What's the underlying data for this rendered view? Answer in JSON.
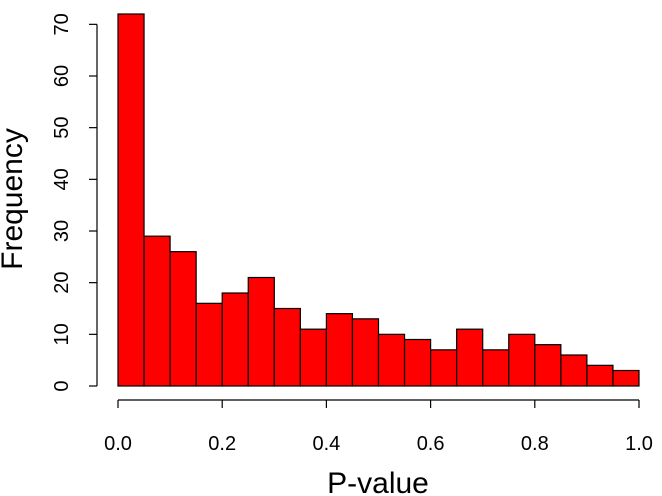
{
  "chart_data": {
    "type": "bar",
    "title": "",
    "xlabel": "P-value",
    "ylabel": "Frequency",
    "bins": [
      [
        0.0,
        0.05
      ],
      [
        0.05,
        0.1
      ],
      [
        0.1,
        0.15
      ],
      [
        0.15,
        0.2
      ],
      [
        0.2,
        0.25
      ],
      [
        0.25,
        0.3
      ],
      [
        0.3,
        0.35
      ],
      [
        0.35,
        0.4
      ],
      [
        0.4,
        0.45
      ],
      [
        0.45,
        0.5
      ],
      [
        0.5,
        0.55
      ],
      [
        0.55,
        0.6
      ],
      [
        0.6,
        0.65
      ],
      [
        0.65,
        0.7
      ],
      [
        0.7,
        0.75
      ],
      [
        0.75,
        0.8
      ],
      [
        0.8,
        0.85
      ],
      [
        0.85,
        0.9
      ],
      [
        0.9,
        0.95
      ],
      [
        0.95,
        1.0
      ]
    ],
    "values": [
      72,
      29,
      26,
      16,
      18,
      21,
      15,
      11,
      14,
      13,
      10,
      9,
      7,
      11,
      7,
      10,
      8,
      6,
      4,
      3
    ],
    "xlim": [
      0,
      1.0
    ],
    "ylim": [
      0,
      72
    ],
    "x_ticks": [
      0.0,
      0.2,
      0.4,
      0.6,
      0.8,
      1.0
    ],
    "x_tick_labels": [
      "0.0",
      "0.2",
      "0.4",
      "0.6",
      "0.8",
      "1.0"
    ],
    "y_ticks": [
      0,
      10,
      20,
      30,
      40,
      50,
      60,
      70
    ],
    "y_tick_labels": [
      "0",
      "10",
      "20",
      "30",
      "40",
      "50",
      "60",
      "70"
    ],
    "grid": false,
    "legend": "none",
    "colors": {
      "bar_fill": "#ff0000",
      "bar_stroke": "#000000",
      "axis": "#000000",
      "background": "#ffffff"
    }
  }
}
